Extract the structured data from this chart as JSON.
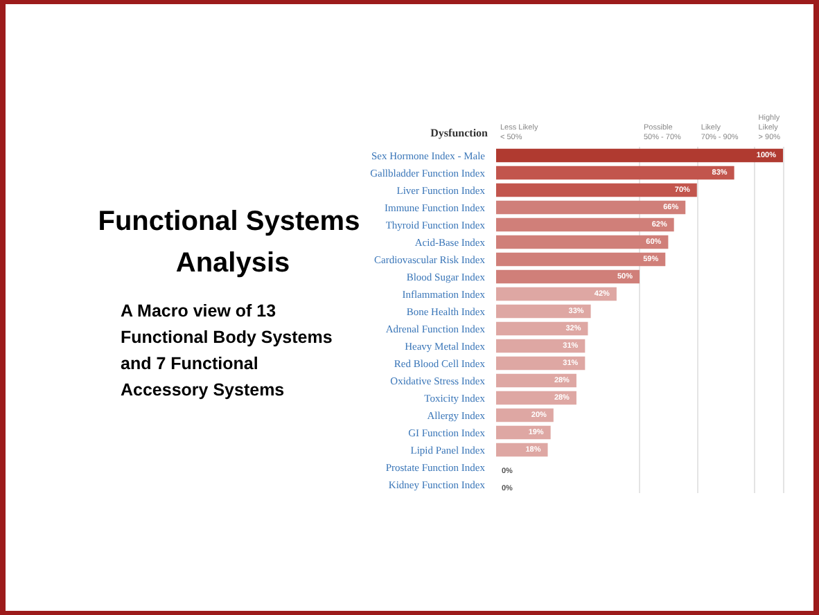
{
  "chart_data": {
    "type": "bar",
    "orientation": "horizontal",
    "title": "Functional Systems Analysis",
    "subtitle": "A Macro view of 13 Functional Body Systems and 7 Functional Accessory Systems",
    "ylabel": "Dysfunction",
    "categories": [
      "Sex Hormone Index - Male",
      "Gallbladder Function Index",
      "Liver Function Index",
      "Immune Function Index",
      "Thyroid Function Index",
      "Acid-Base Index",
      "Cardiovascular Risk Index",
      "Blood Sugar Index",
      "Inflammation Index",
      "Bone Health Index",
      "Adrenal Function Index",
      "Heavy Metal Index",
      "Red Blood Cell Index",
      "Oxidative Stress Index",
      "Toxicity Index",
      "Allergy Index",
      "GI Function Index",
      "Lipid Panel Index",
      "Prostate Function Index",
      "Kidney Function Index"
    ],
    "values": [
      100,
      83,
      70,
      66,
      62,
      60,
      59,
      50,
      42,
      33,
      32,
      31,
      31,
      28,
      28,
      20,
      19,
      18,
      0,
      0
    ],
    "value_labels": [
      "100%",
      "83%",
      "70%",
      "66%",
      "62%",
      "60%",
      "59%",
      "50%",
      "42%",
      "33%",
      "32%",
      "31%",
      "31%",
      "28%",
      "28%",
      "20%",
      "19%",
      "18%",
      "0%",
      "0%"
    ],
    "colors": [
      "#b03a30",
      "#c2554d",
      "#c2554d",
      "#d07f79",
      "#d07f79",
      "#d07f79",
      "#d07f79",
      "#d07f79",
      "#dea7a3",
      "#dea7a3",
      "#dea7a3",
      "#dea7a3",
      "#dea7a3",
      "#dea7a3",
      "#dea7a3",
      "#dea7a3",
      "#dea7a3",
      "#dea7a3",
      "#dea7a3",
      "#dea7a3"
    ],
    "xlim": [
      0,
      100
    ],
    "tick_labels": "y",
    "grid": false,
    "ref_lines": [
      {
        "axis": "x",
        "value": 50,
        "color": "#e4e4e4"
      },
      {
        "axis": "x",
        "value": 70,
        "color": "#e4e4e4"
      },
      {
        "axis": "x",
        "value": 90,
        "color": "#e4e4e4"
      },
      {
        "axis": "x",
        "value": 100,
        "color": "#e4e4e4"
      }
    ],
    "annotations": [
      "Less Likely\n< 50%",
      "Possible\n50% - 70%",
      "Likely\n70% - 90%",
      "Highly\nLikely\n> 90%"
    ]
  }
}
